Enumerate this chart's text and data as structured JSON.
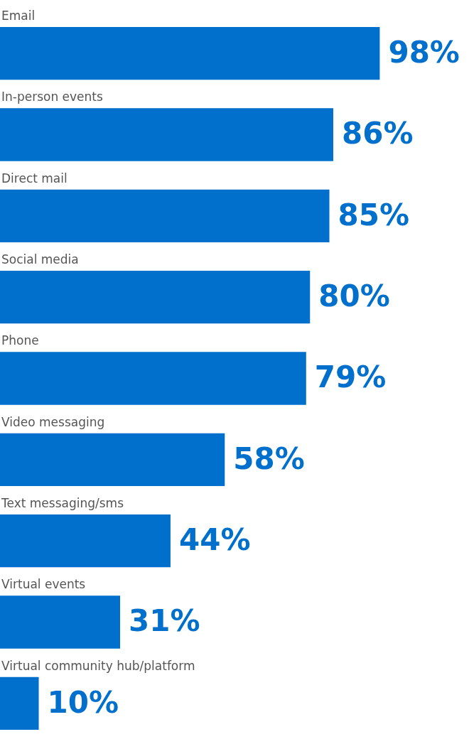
{
  "chart_data": {
    "type": "bar",
    "orientation": "horizontal",
    "categories": [
      "Email",
      "In-person events",
      "Direct mail",
      "Social media",
      "Phone",
      "Video messaging",
      "Text messaging/sms",
      "Virtual events",
      "Virtual community hub/platform"
    ],
    "values": [
      98,
      86,
      85,
      80,
      79,
      58,
      44,
      31,
      10
    ],
    "value_labels": [
      "98%",
      "86%",
      "85%",
      "80%",
      "79%",
      "58%",
      "44%",
      "31%",
      "10%"
    ],
    "color": "#0070cc"
  }
}
